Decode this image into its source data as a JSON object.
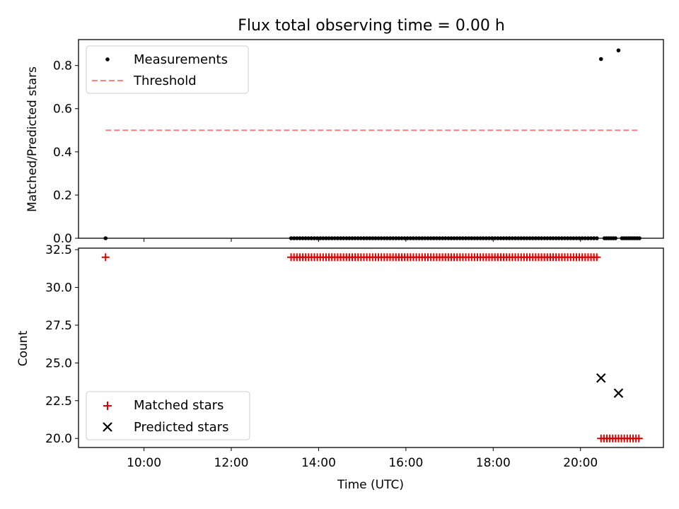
{
  "title": "Flux total observing time = 0.00 h",
  "chart_data": [
    {
      "type": "scatter",
      "ylabel": "Matched/Predicted stars",
      "xlim_hours": [
        8.5,
        21.9
      ],
      "ylim": [
        0,
        0.92
      ],
      "yticks": [
        0.0,
        0.2,
        0.4,
        0.6,
        0.8
      ],
      "ytick_labels": [
        "0.0",
        "0.2",
        "0.4",
        "0.6",
        "0.8"
      ],
      "xticks_hours": [
        10,
        12,
        14,
        16,
        18,
        20
      ],
      "legend": {
        "position": "top-left",
        "entries": [
          {
            "label": "Measurements",
            "marker": "dot",
            "color": "#000000"
          },
          {
            "label": "Threshold",
            "marker": "dashed-line",
            "color": "#ff7f7f"
          }
        ]
      },
      "series": [
        {
          "name": "Measurements",
          "color": "#000000",
          "zero_points": {
            "lone_hours": [
              9.12
            ],
            "run": {
              "start": 13.37,
              "end": 20.4,
              "step": 0.0667
            },
            "late_hours": [
              20.55,
              20.6,
              20.65,
              20.7,
              20.75,
              20.8,
              20.95,
              21.0,
              21.05,
              21.1,
              21.15,
              21.2,
              21.25,
              21.3,
              21.35
            ]
          },
          "points": [
            [
              20.47,
              0.83
            ],
            [
              20.87,
              0.87
            ]
          ]
        },
        {
          "name": "Threshold",
          "color": "#ff7f7f",
          "line": {
            "x_start": 9.12,
            "x_end": 21.35,
            "y": 0.5
          }
        }
      ]
    },
    {
      "type": "scatter",
      "xlabel": "Time (UTC)",
      "ylabel": "Count",
      "xlim_hours": [
        8.5,
        21.9
      ],
      "ylim": [
        19.4,
        32.6
      ],
      "yticks": [
        20.0,
        22.5,
        25.0,
        27.5,
        30.0,
        32.5
      ],
      "ytick_labels": [
        "20.0",
        "22.5",
        "25.0",
        "27.5",
        "30.0",
        "32.5"
      ],
      "xticks_hours": [
        10,
        12,
        14,
        16,
        18,
        20
      ],
      "xtick_labels": [
        "10:00",
        "12:00",
        "14:00",
        "16:00",
        "18:00",
        "20:00"
      ],
      "legend": {
        "position": "bottom-left",
        "entries": [
          {
            "label": "Matched stars",
            "marker": "plus",
            "color": "#e00000"
          },
          {
            "label": "Predicted stars",
            "marker": "x",
            "color": "#000000"
          }
        ]
      },
      "series": [
        {
          "name": "Matched stars",
          "color": "#e00000",
          "points": [
            [
              9.12,
              32
            ]
          ],
          "run": {
            "start": 13.37,
            "end": 20.4,
            "step": 0.0667,
            "y": 32
          },
          "late_run": {
            "start": 20.47,
            "end": 21.35,
            "step": 0.0667,
            "y": 20
          }
        },
        {
          "name": "Predicted stars",
          "color": "#000000",
          "points": [
            [
              20.47,
              24
            ],
            [
              20.87,
              23
            ]
          ]
        }
      ]
    }
  ]
}
